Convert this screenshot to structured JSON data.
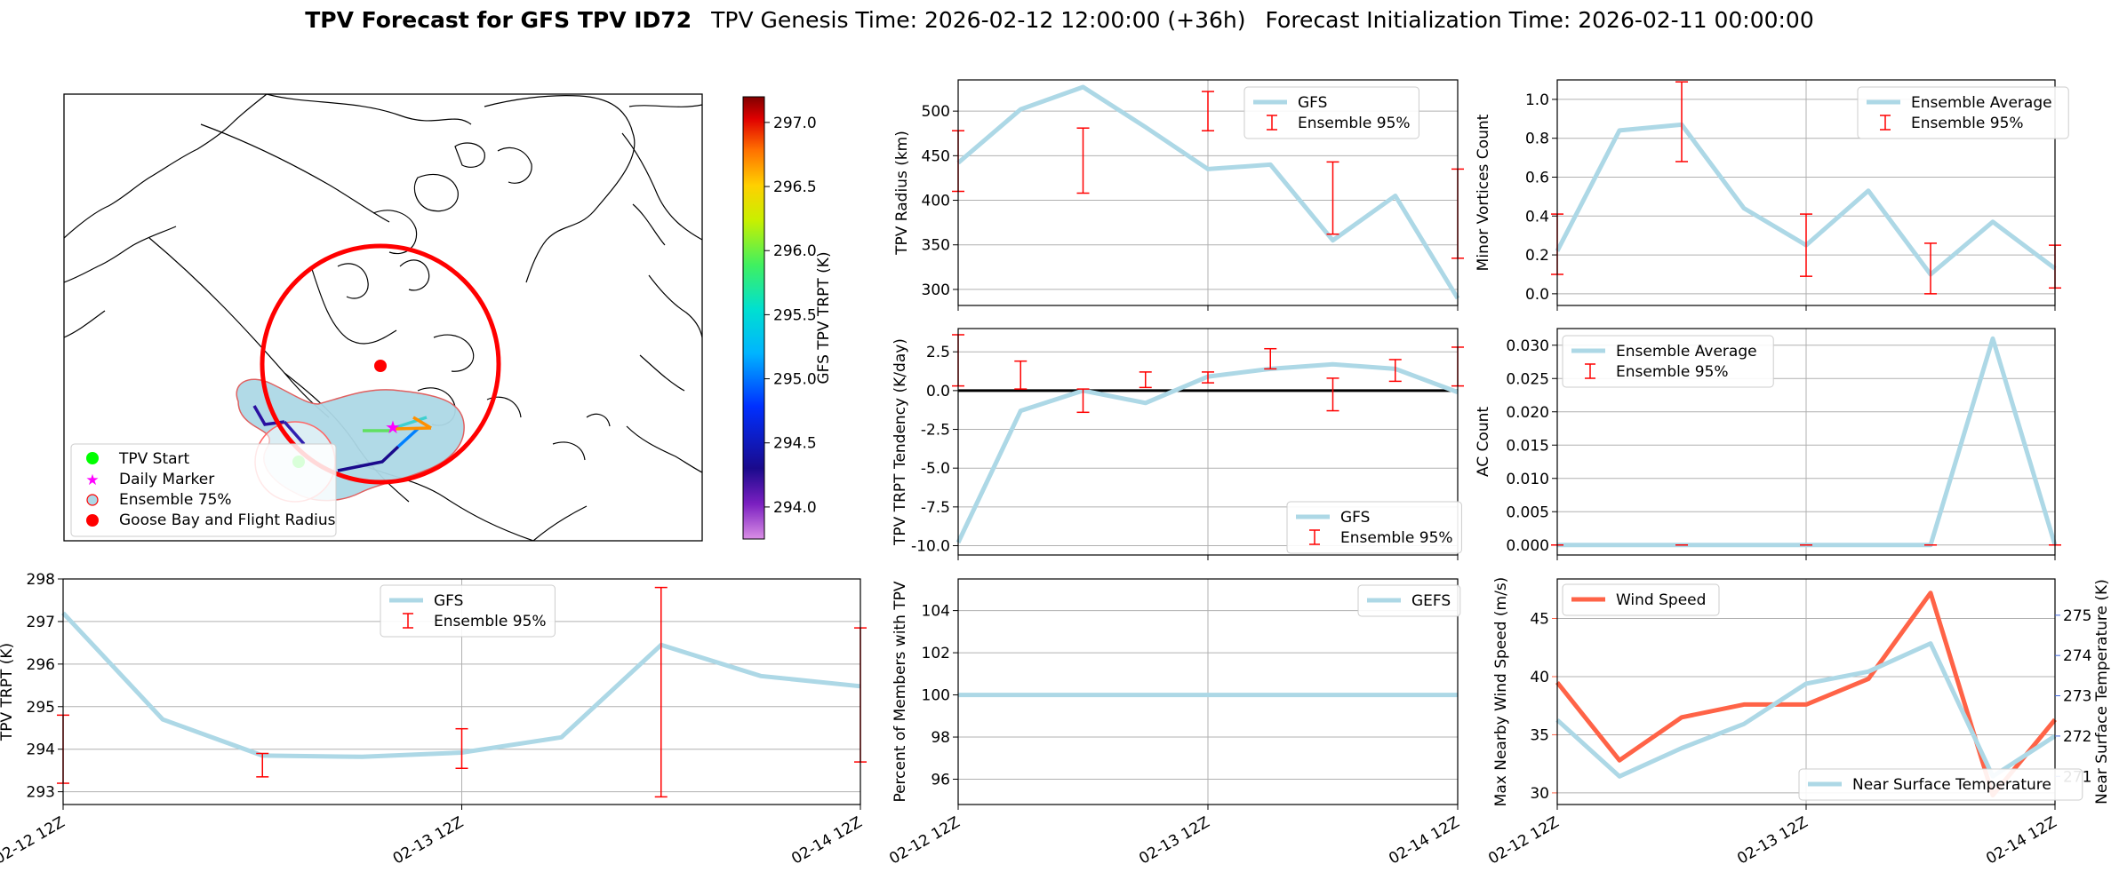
{
  "title": {
    "bold": "TPV Forecast for GFS TPV ID72",
    "genesis": "TPV Genesis Time: 2026-02-12 12:00:00 (+36h)",
    "init": "Forecast Initialization Time: 2026-02-11 00:00:00"
  },
  "colors": {
    "gfs": "#add8e6",
    "err": "#ff0000",
    "wind": "#ff6347",
    "temp_axis": "#4169e1",
    "zero": "#000000"
  },
  "x_ticks": [
    "02-12 12Z",
    "02-13 12Z",
    "02-14 12Z"
  ],
  "map": {
    "legend": [
      "TPV Start",
      "Daily Marker",
      "Ensemble 75%",
      "Goose Bay and Flight Radius"
    ],
    "colorbar": {
      "label": "GFS TPV TRPT (K)",
      "ticks": [
        "294.0",
        "294.5",
        "295.0",
        "295.5",
        "296.0",
        "296.5",
        "297.0"
      ]
    }
  },
  "chart_data": [
    {
      "id": "trpt",
      "type": "line",
      "ylabel": "TPV TRPT (K)",
      "xlim": [
        0,
        8
      ],
      "ylim": [
        292.7,
        298
      ],
      "yticks": [
        "293",
        "294",
        "295",
        "296",
        "297",
        "298"
      ],
      "legend": [
        "GFS",
        "Ensemble 95%"
      ],
      "series": [
        {
          "name": "GFS",
          "x": [
            0,
            1,
            2,
            3,
            4,
            5,
            6,
            7,
            8
          ],
          "values": [
            297.2,
            294.7,
            293.85,
            293.82,
            293.92,
            294.28,
            296.45,
            295.72,
            295.48
          ]
        }
      ],
      "errorbars": [
        {
          "x": 0,
          "low": 293.2,
          "high": 294.8
        },
        {
          "x": 2,
          "low": 293.35,
          "high": 293.9
        },
        {
          "x": 4,
          "low": 293.55,
          "high": 294.48
        },
        {
          "x": 6,
          "low": 292.88,
          "high": 297.8
        },
        {
          "x": 8,
          "low": 293.7,
          "high": 296.85
        }
      ]
    },
    {
      "id": "radius",
      "type": "line",
      "ylabel": "TPV Radius (km)",
      "xlim": [
        0,
        8
      ],
      "ylim": [
        282,
        535
      ],
      "yticks": [
        "300",
        "350",
        "400",
        "450",
        "500"
      ],
      "legend": [
        "GFS",
        "Ensemble 95%"
      ],
      "series": [
        {
          "name": "GFS",
          "x": [
            0,
            1,
            2,
            3,
            4,
            5,
            6,
            7,
            8
          ],
          "values": [
            442,
            502,
            527,
            482,
            435,
            440,
            355,
            405,
            290
          ]
        }
      ],
      "errorbars": [
        {
          "x": 0,
          "low": 410,
          "high": 478
        },
        {
          "x": 2,
          "low": 408,
          "high": 481
        },
        {
          "x": 4,
          "low": 478,
          "high": 522
        },
        {
          "x": 6,
          "low": 362,
          "high": 443
        },
        {
          "x": 8,
          "low": 335,
          "high": 435
        }
      ]
    },
    {
      "id": "tendency",
      "type": "line",
      "ylabel": "TPV TRPT Tendency (K/day)",
      "xlim": [
        0,
        8
      ],
      "ylim": [
        -10.6,
        4.0
      ],
      "yticks": [
        "2.5",
        "0.0",
        "-2.5",
        "-5.0",
        "-7.5",
        "-10.0"
      ],
      "legend": [
        "GFS",
        "Ensemble 95%"
      ],
      "series": [
        {
          "name": "GFS",
          "x": [
            0,
            1,
            2,
            3,
            4,
            5,
            6,
            7,
            8
          ],
          "values": [
            -9.8,
            -1.3,
            0.0,
            -0.8,
            0.9,
            1.4,
            1.7,
            1.4,
            -0.1
          ]
        }
      ],
      "errorbars": [
        {
          "x": 0,
          "low": 0.3,
          "high": 3.6
        },
        {
          "x": 1,
          "low": 0.1,
          "high": 1.9
        },
        {
          "x": 2,
          "low": -1.4,
          "high": 0.1
        },
        {
          "x": 3,
          "low": 0.2,
          "high": 1.2
        },
        {
          "x": 4,
          "low": 0.5,
          "high": 1.2
        },
        {
          "x": 5,
          "low": 1.4,
          "high": 2.7
        },
        {
          "x": 6,
          "low": -1.3,
          "high": 0.8
        },
        {
          "x": 7,
          "low": 0.6,
          "high": 2.0
        },
        {
          "x": 8,
          "low": 0.3,
          "high": 2.8
        }
      ]
    },
    {
      "id": "members",
      "type": "line",
      "ylabel": "Percent of Members with TPV",
      "xlim": [
        0,
        8
      ],
      "ylim": [
        94.8,
        105.5
      ],
      "yticks": [
        "96",
        "98",
        "100",
        "102",
        "104"
      ],
      "legend": [
        "GEFS"
      ],
      "series": [
        {
          "name": "GEFS",
          "x": [
            0,
            1,
            2,
            3,
            4,
            5,
            6,
            7,
            8
          ],
          "values": [
            100,
            100,
            100,
            100,
            100,
            100,
            100,
            100,
            100
          ]
        }
      ]
    },
    {
      "id": "minor",
      "type": "line",
      "ylabel": "Minor Vortices Count",
      "xlim": [
        0,
        8
      ],
      "ylim": [
        -0.06,
        1.1
      ],
      "yticks": [
        "0.0",
        "0.2",
        "0.4",
        "0.6",
        "0.8",
        "1.0"
      ],
      "legend": [
        "Ensemble Average",
        "Ensemble 95%"
      ],
      "series": [
        {
          "name": "Ensemble Average",
          "x": [
            0,
            1,
            2,
            3,
            4,
            5,
            6,
            7,
            8
          ],
          "values": [
            0.22,
            0.84,
            0.87,
            0.44,
            0.25,
            0.53,
            0.1,
            0.37,
            0.13
          ]
        }
      ],
      "errorbars": [
        {
          "x": 0,
          "low": 0.1,
          "high": 0.41
        },
        {
          "x": 2,
          "low": 0.68,
          "high": 1.09
        },
        {
          "x": 4,
          "low": 0.09,
          "high": 0.41
        },
        {
          "x": 6,
          "low": 0.0,
          "high": 0.26
        },
        {
          "x": 8,
          "low": 0.03,
          "high": 0.25
        }
      ]
    },
    {
      "id": "ac",
      "type": "line",
      "ylabel": "AC Count",
      "xlim": [
        0,
        8
      ],
      "ylim": [
        -0.0015,
        0.0325
      ],
      "yticks": [
        "0.000",
        "0.005",
        "0.010",
        "0.015",
        "0.020",
        "0.025",
        "0.030"
      ],
      "legend": [
        "Ensemble Average",
        "Ensemble 95%"
      ],
      "series": [
        {
          "name": "Ensemble Average",
          "x": [
            0,
            1,
            2,
            3,
            4,
            5,
            6,
            7,
            8
          ],
          "values": [
            0,
            0,
            0,
            0,
            0,
            0,
            0,
            0.031,
            0
          ]
        }
      ],
      "errorbars": [
        {
          "x": 0,
          "low": 0,
          "high": 0
        },
        {
          "x": 2,
          "low": 0,
          "high": 0
        },
        {
          "x": 4,
          "low": 0,
          "high": 0
        },
        {
          "x": 6,
          "low": 0,
          "high": 0
        },
        {
          "x": 8,
          "low": 0,
          "high": 0
        }
      ]
    },
    {
      "id": "wind",
      "type": "line",
      "ylabel": "Max Nearby Wind Speed (m/s)",
      "y2label": "Near Surface Temperature (K)",
      "xlim": [
        0,
        8
      ],
      "ylim": [
        29,
        48.4
      ],
      "yticks": [
        "30",
        "35",
        "40",
        "45"
      ],
      "y2lim": [
        270.3,
        275.9
      ],
      "y2ticks": [
        "271",
        "272",
        "273",
        "274",
        "275"
      ],
      "legend": [
        "Wind Speed"
      ],
      "legend2": [
        "Near Surface Temperature"
      ],
      "series": [
        {
          "name": "Wind Speed",
          "axis": "left",
          "x": [
            0,
            1,
            2,
            3,
            4,
            5,
            6,
            7,
            8
          ],
          "values": [
            39.5,
            32.8,
            36.5,
            37.6,
            37.6,
            39.8,
            47.2,
            29.8,
            36.3
          ]
        },
        {
          "name": "Near Surface Temperature",
          "axis": "right",
          "x": [
            0,
            1,
            2,
            3,
            4,
            5,
            6,
            7,
            8
          ],
          "values": [
            272.4,
            271.0,
            271.7,
            272.3,
            273.3,
            273.6,
            274.3,
            271.0,
            272.0
          ]
        }
      ]
    }
  ]
}
